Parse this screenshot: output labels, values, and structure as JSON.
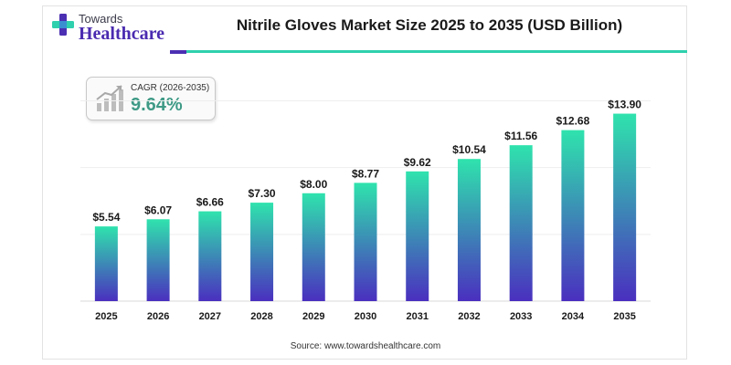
{
  "brand": {
    "top": "Towards",
    "main": "Healthcare"
  },
  "title": "Nitrile Gloves Market Size 2025 to 2035 (USD Billion)",
  "cagr": {
    "label": "CAGR (2026-2035)",
    "value": "9.64%"
  },
  "source": "Source: www.towardshealthcare.com",
  "colors": {
    "bar_top": "#2fe3ad",
    "bar_bottom": "#4a2fbf",
    "accent_purple": "#4b2fb2",
    "accent_teal": "#2fd0ad"
  },
  "chart_data": {
    "type": "bar",
    "title": "Nitrile Gloves Market Size 2025 to 2035 (USD Billion)",
    "categories": [
      "2025",
      "2026",
      "2027",
      "2028",
      "2029",
      "2030",
      "2031",
      "2032",
      "2033",
      "2034",
      "2035"
    ],
    "values": [
      5.54,
      6.07,
      6.66,
      7.3,
      8.0,
      8.77,
      9.62,
      10.54,
      11.56,
      12.68,
      13.9
    ],
    "labels": [
      "$5.54",
      "$6.07",
      "$6.66",
      "$7.30",
      "$8.00",
      "$8.77",
      "$9.62",
      "$10.54",
      "$11.56",
      "$12.68",
      "$13.90"
    ],
    "xlabel": "",
    "ylabel": "",
    "ylim": [
      0,
      16
    ],
    "grid": true
  }
}
